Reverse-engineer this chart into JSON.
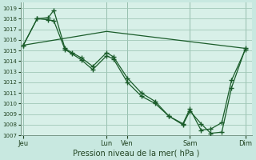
{
  "fig_bg": "#c8e8e0",
  "plot_bg": "#d8f0e8",
  "grid_color": "#a0c8b8",
  "line_color": "#1a5c2a",
  "xlabel": "Pression niveau de la mer( hPa )",
  "ylim": [
    1007,
    1019.5
  ],
  "yticks": [
    1007,
    1008,
    1009,
    1010,
    1011,
    1012,
    1013,
    1014,
    1015,
    1016,
    1017,
    1018,
    1019
  ],
  "xtick_labels": [
    "Jeu",
    "Lun",
    "Ven",
    "Sam",
    "Dim"
  ],
  "xtick_positions": [
    0,
    6,
    7.5,
    12,
    16
  ],
  "xlim": [
    -0.2,
    16.5
  ],
  "series1_x": [
    0,
    1,
    1.8,
    2.2,
    3.0,
    3.5,
    4.2,
    5.0,
    6.0,
    6.5,
    7.5,
    8.5,
    9.5,
    10.5,
    11.5,
    12.0,
    12.8,
    13.5,
    14.3,
    15.0,
    16.0
  ],
  "series1_y": [
    1015.5,
    1018.0,
    1018.1,
    1018.8,
    1015.2,
    1014.8,
    1014.3,
    1013.5,
    1014.8,
    1014.4,
    1012.4,
    1011.0,
    1010.2,
    1008.8,
    1008.0,
    1009.3,
    1008.1,
    1007.2,
    1007.3,
    1011.5,
    1015.2
  ],
  "series2_x": [
    0,
    1,
    1.8,
    2.2,
    3.0,
    3.5,
    4.2,
    5.0,
    6.0,
    6.5,
    7.5,
    8.5,
    9.5,
    10.5,
    11.5,
    12.0,
    12.8,
    13.5,
    14.3,
    15.0,
    16.0
  ],
  "series2_y": [
    1015.5,
    1018.0,
    1017.9,
    1017.8,
    1015.1,
    1014.7,
    1014.1,
    1013.2,
    1014.5,
    1014.2,
    1012.0,
    1010.7,
    1010.0,
    1008.8,
    1008.1,
    1009.5,
    1007.5,
    1007.6,
    1008.2,
    1012.2,
    1015.1
  ],
  "series3_x": [
    0,
    6,
    16
  ],
  "series3_y": [
    1015.5,
    1016.8,
    1015.2
  ]
}
